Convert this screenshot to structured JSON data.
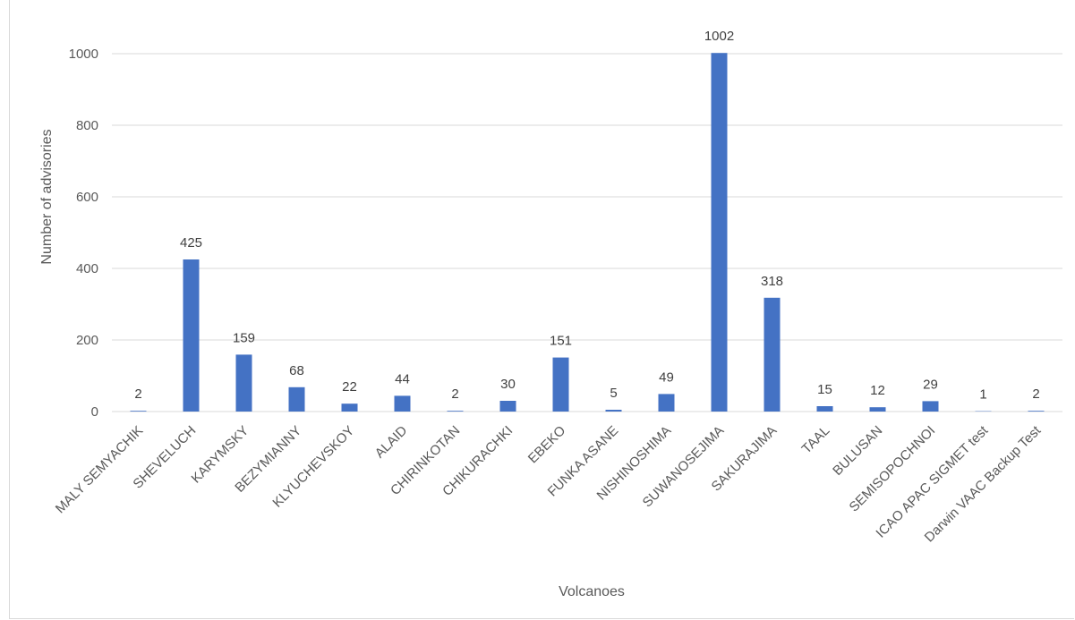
{
  "chart_data": {
    "type": "bar",
    "xlabel": "Volcanoes",
    "ylabel": "Number of advisories",
    "ylim": [
      0,
      1100
    ],
    "yticks": [
      0,
      200,
      400,
      600,
      800,
      1000
    ],
    "grid": "horizontal",
    "legend": "none",
    "bar_color": "#4472c4",
    "gridline_color": "#d9d9d9",
    "categories": [
      "MALY SEMYACHIK",
      "SHEVELUCH",
      "KARYMSKY",
      "BEZYMIANNY",
      "KLYUCHEVSKOY",
      "ALAID",
      "CHIRINKOTAN",
      "CHIKURACHKI",
      "EBEKO",
      "FUNKA ASANE",
      "NISHINOSHIMA",
      "SUWANOSEJIMA",
      "SAKURAJIMA",
      "TAAL",
      "BULUSAN",
      "SEMISOPOCHNOI",
      "ICAO APAC SIGMET test",
      "Darwin VAAC Backup Test"
    ],
    "values": [
      2,
      425,
      159,
      68,
      22,
      44,
      2,
      30,
      151,
      5,
      49,
      1002,
      318,
      15,
      12,
      29,
      1,
      2
    ]
  }
}
